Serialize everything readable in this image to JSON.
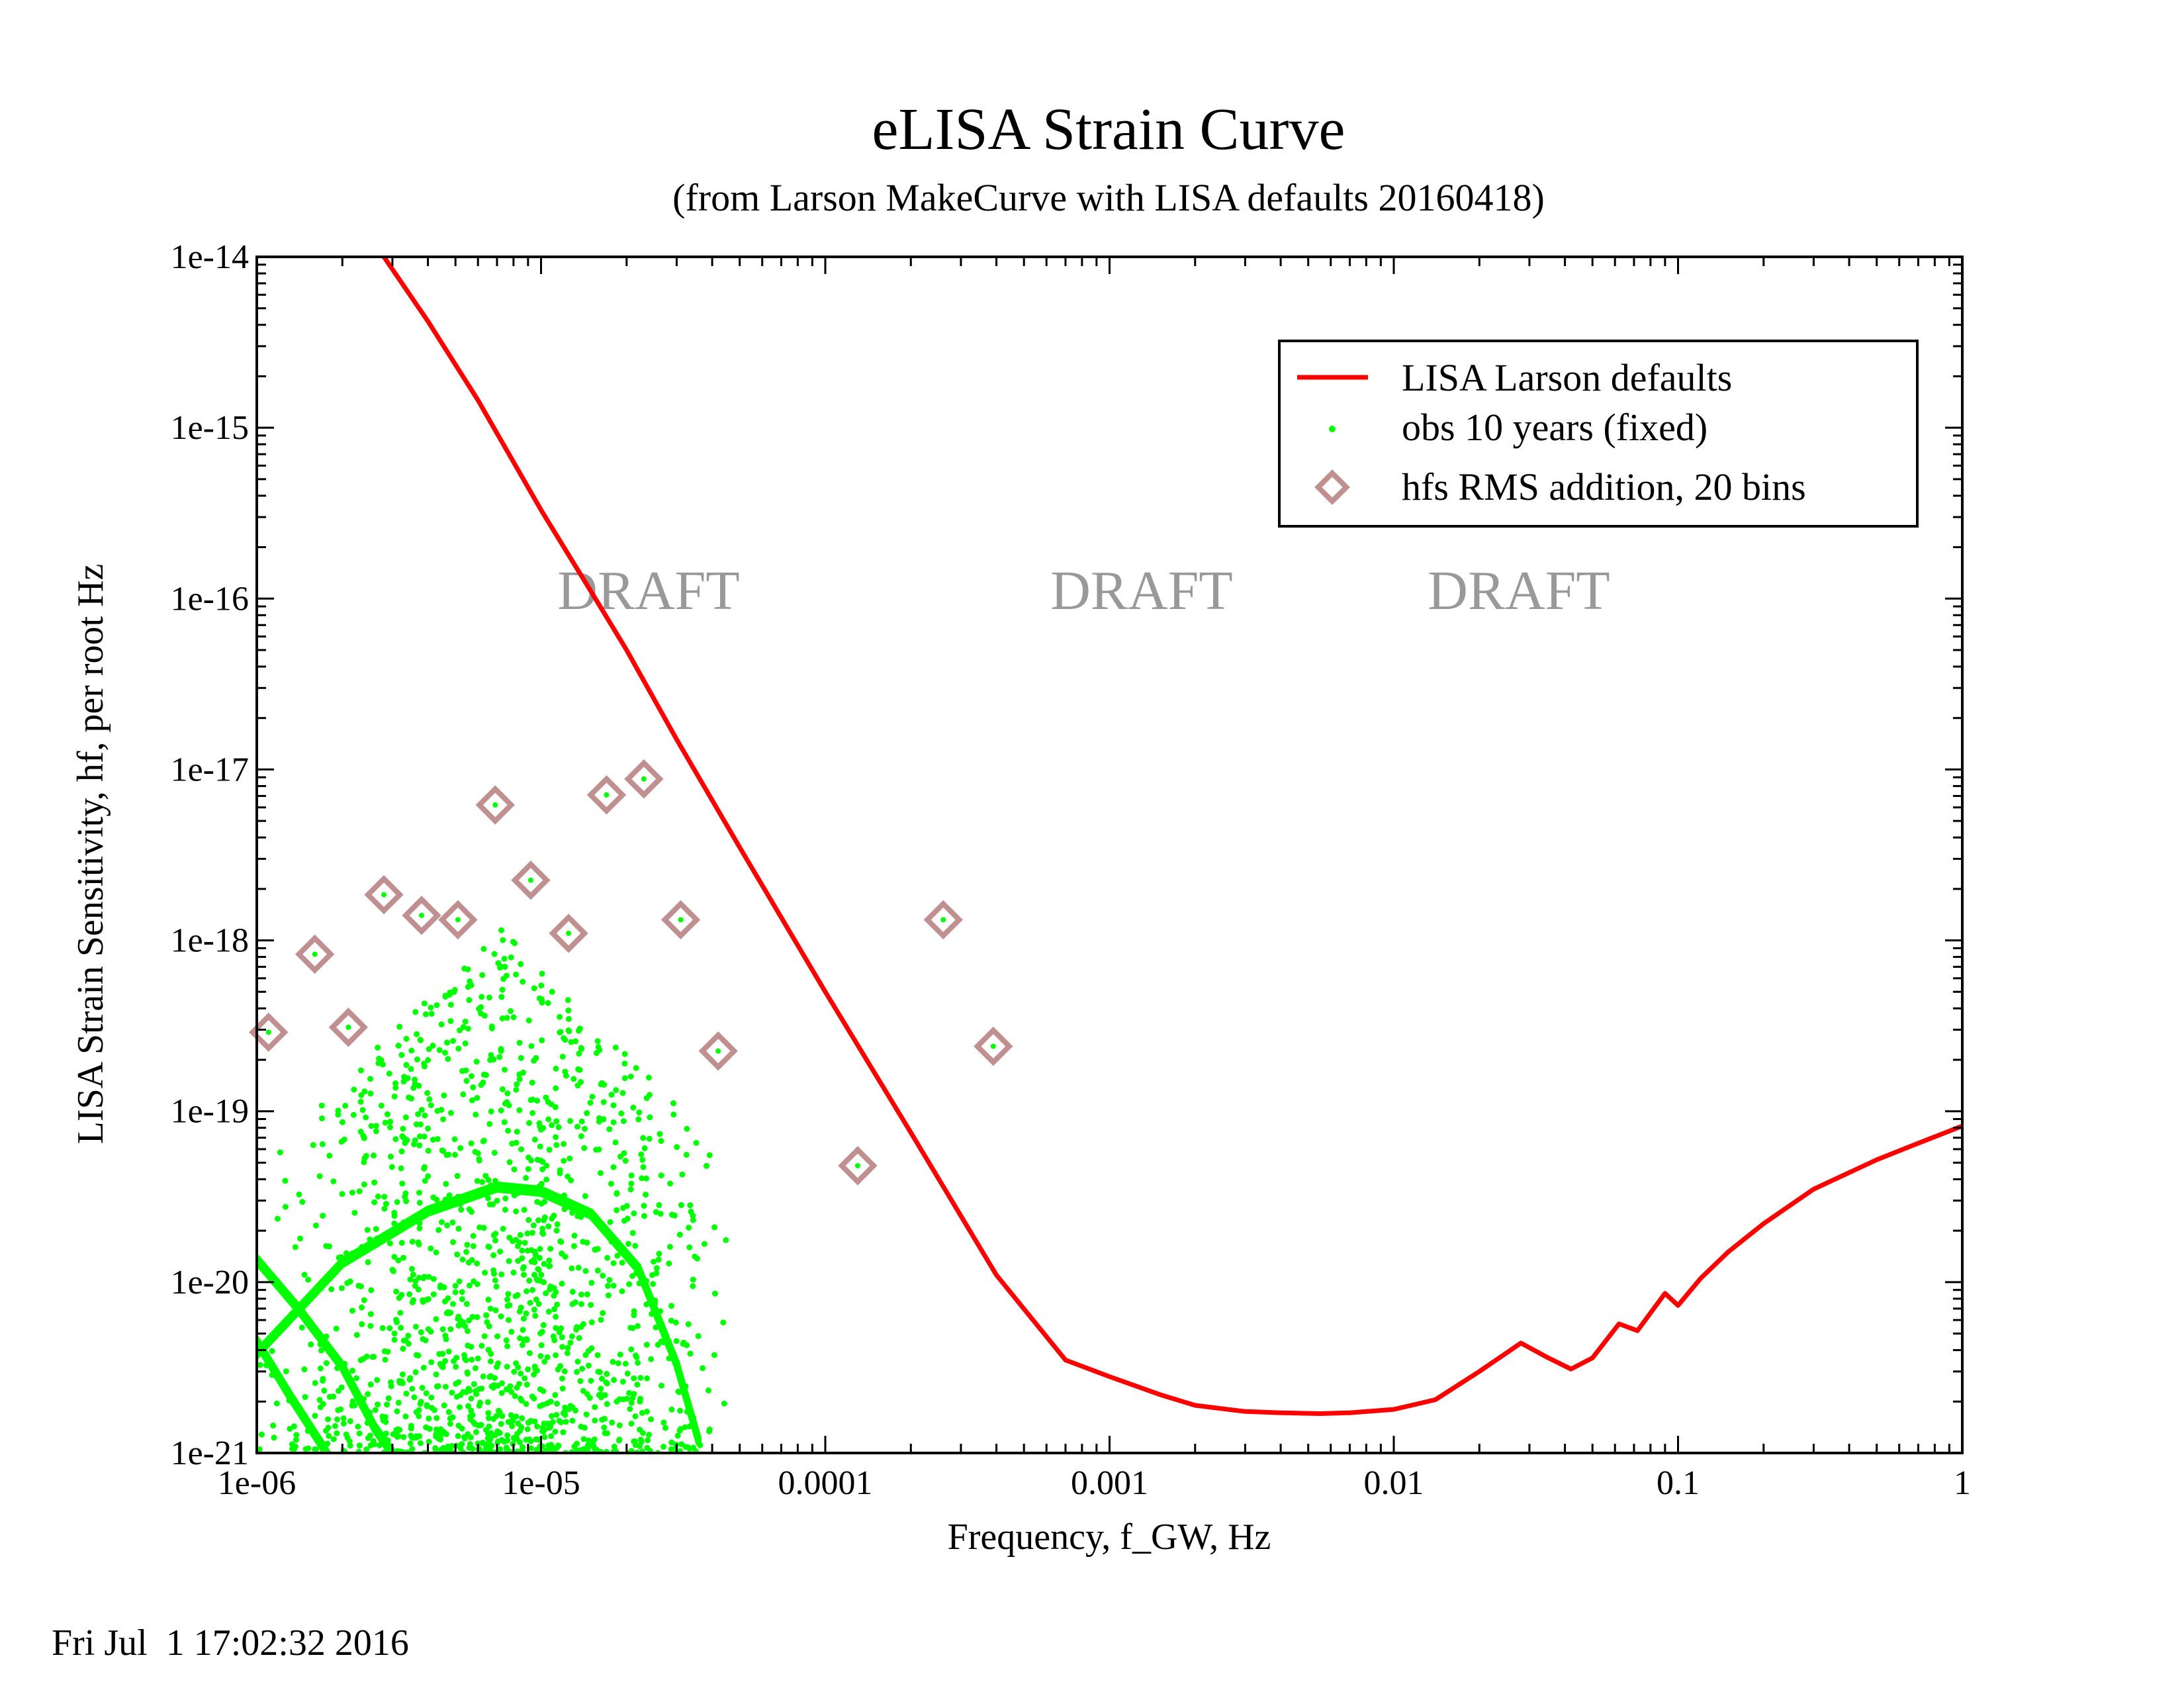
{
  "chart_data": {
    "type": "line",
    "title": "eLISA Strain Curve",
    "subtitle": "(from Larson MakeCurve with LISA defaults 20160418)",
    "xlabel": "Frequency, f_GW, Hz",
    "ylabel": "LISA Strain Sensitivity, hf, per root Hz",
    "xscale": "log",
    "yscale": "log",
    "xlim": [
      1e-06,
      1
    ],
    "ylim": [
      1e-21,
      1e-14
    ],
    "x_ticks": [
      1e-06,
      1e-05,
      0.0001,
      0.001,
      0.01,
      0.1,
      1
    ],
    "x_tick_labels": [
      "1e-06",
      "1e-05",
      "0.0001",
      "0.001",
      "0.01",
      "0.1",
      "1"
    ],
    "y_ticks": [
      1e-21,
      1e-20,
      1e-19,
      1e-18,
      1e-17,
      1e-16,
      1e-15,
      1e-14
    ],
    "y_tick_labels": [
      "1e-21",
      "1e-20",
      "1e-19",
      "1e-18",
      "1e-17",
      "1e-16",
      "1e-15",
      "1e-14"
    ],
    "grid": false,
    "legend_position": "top-right",
    "watermarks": [
      "DRAFT",
      "DRAFT",
      "DRAFT"
    ],
    "footer": "Fri Jul  1 17:02:32 2016",
    "series": [
      {
        "name": "LISA Larson defaults",
        "style": "line",
        "color": "#ff0000",
        "x": [
          2.8e-06,
          4e-06,
          6e-06,
          1e-05,
          1.5e-05,
          2e-05,
          3e-05,
          5e-05,
          0.0001,
          0.0002,
          0.0004,
          0.0007,
          0.001,
          0.0015,
          0.002,
          0.003,
          0.004,
          0.0055,
          0.007,
          0.01,
          0.014,
          0.02,
          0.028,
          0.035,
          0.042,
          0.05,
          0.062,
          0.072,
          0.09,
          0.1,
          0.12,
          0.15,
          0.2,
          0.3,
          0.5,
          0.7,
          1.0
        ],
        "y": [
          1e-14,
          4.2e-15,
          1.45e-15,
          3.3e-16,
          1.1e-16,
          5e-17,
          1.5e-17,
          3.5e-18,
          5e-19,
          7.5e-20,
          1.1e-20,
          3.5e-21,
          2.8e-21,
          2.2e-21,
          1.9e-21,
          1.75e-21,
          1.72e-21,
          1.7e-21,
          1.72e-21,
          1.8e-21,
          2.05e-21,
          3e-21,
          4.4e-21,
          3.6e-21,
          3.1e-21,
          3.6e-21,
          5.7e-21,
          5.2e-21,
          8.6e-21,
          7.3e-21,
          1.05e-20,
          1.5e-20,
          2.2e-20,
          3.5e-20,
          5.2e-20,
          6.5e-20,
          8.2e-20
        ]
      },
      {
        "name": "obs 10 years (fixed)",
        "style": "points",
        "color": "#00ff00",
        "clusters": [
          {
            "x_range": [
              1e-06,
              5e-05
            ],
            "y_range": [
              1e-21,
              1.2e-18
            ],
            "count": 1500
          }
        ],
        "bands": [
          {
            "name_hidden": true,
            "x": [
              1e-06,
              2e-06,
              4e-06,
              7e-06,
              1e-05,
              1.5e-05,
              2.2e-05,
              3e-05,
              3.6e-05
            ],
            "y": [
              3.8e-21,
              1.3e-20,
              2.6e-20,
              3.6e-20,
              3.4e-20,
              2.5e-20,
              1.2e-20,
              3.3e-21,
              1.15e-21
            ]
          },
          {
            "name_hidden": true,
            "x": [
              1e-06,
              1.4e-06,
              2e-06,
              2.6e-06,
              3e-06
            ],
            "y": [
              1.35e-20,
              7e-21,
              3.2e-21,
              1.4e-21,
              1e-21
            ]
          },
          {
            "name_hidden": true,
            "x": [
              1e-06,
              1.3e-06,
              1.7e-06,
              2e-06
            ],
            "y": [
              4.5e-21,
              2.2e-21,
              1.1e-21,
              7e-22
            ]
          }
        ]
      },
      {
        "name": "hfs RMS addition, 20 bins",
        "style": "markers",
        "marker": "diamond",
        "color": "#c09090",
        "x": [
          1.1e-06,
          1.6e-06,
          2.1e-06,
          2.8e-06,
          3.8e-06,
          5.1e-06,
          6.9e-06,
          9.2e-06,
          1.25e-05,
          1.7e-05,
          2.3e-05,
          3.1e-05,
          4.2e-05,
          0.00013,
          0.00026,
          0.00039
        ],
        "y": [
          2.9e-19,
          8.3e-19,
          3.1e-19,
          1.85e-18,
          1.4e-18,
          1.32e-18,
          6.2e-18,
          2.25e-18,
          1.1e-18,
          7.1e-18,
          8.8e-18,
          1.32e-18,
          2.25e-19,
          4.8e-20,
          1.32e-18,
          2.4e-19
        ]
      }
    ]
  }
}
